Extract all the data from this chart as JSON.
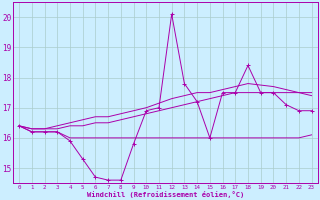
{
  "xlabel": "Windchill (Refroidissement éolien,°C)",
  "background_color": "#cceeff",
  "grid_color": "#aacccc",
  "line_color": "#aa00aa",
  "xlim": [
    -0.5,
    23.5
  ],
  "ylim": [
    14.5,
    20.5
  ],
  "yticks": [
    15,
    16,
    17,
    18,
    19,
    20
  ],
  "xticks": [
    0,
    1,
    2,
    3,
    4,
    5,
    6,
    7,
    8,
    9,
    10,
    11,
    12,
    13,
    14,
    15,
    16,
    17,
    18,
    19,
    20,
    21,
    22,
    23
  ],
  "series1_x": [
    0,
    1,
    2,
    3,
    4,
    5,
    6,
    7,
    8,
    9,
    10,
    11,
    12,
    13,
    14,
    15,
    16,
    17,
    18,
    19,
    20,
    21,
    22,
    23
  ],
  "series1_y": [
    16.4,
    16.2,
    16.2,
    16.2,
    15.9,
    15.3,
    14.7,
    14.6,
    14.6,
    15.8,
    16.9,
    17.0,
    20.1,
    17.8,
    17.2,
    16.0,
    17.5,
    17.5,
    18.4,
    17.5,
    17.5,
    17.1,
    16.9,
    16.9
  ],
  "series2_x": [
    0,
    1,
    2,
    3,
    4,
    5,
    6,
    7,
    8,
    9,
    10,
    11,
    12,
    13,
    14,
    15,
    16,
    17,
    18,
    19,
    20,
    21,
    22,
    23
  ],
  "series2_y": [
    16.4,
    16.2,
    16.2,
    16.2,
    16.0,
    16.0,
    16.0,
    16.0,
    16.0,
    16.0,
    16.0,
    16.0,
    16.0,
    16.0,
    16.0,
    16.0,
    16.0,
    16.0,
    16.0,
    16.0,
    16.0,
    16.0,
    16.0,
    16.1
  ],
  "series3_x": [
    0,
    1,
    2,
    3,
    4,
    5,
    6,
    7,
    8,
    9,
    10,
    11,
    12,
    13,
    14,
    15,
    16,
    17,
    18,
    19,
    20,
    21,
    22,
    23
  ],
  "series3_y": [
    16.4,
    16.3,
    16.3,
    16.3,
    16.4,
    16.4,
    16.5,
    16.5,
    16.6,
    16.7,
    16.8,
    16.9,
    17.0,
    17.1,
    17.2,
    17.3,
    17.4,
    17.5,
    17.5,
    17.5,
    17.5,
    17.5,
    17.5,
    17.5
  ],
  "series4_x": [
    0,
    1,
    2,
    3,
    4,
    5,
    6,
    7,
    8,
    9,
    10,
    11,
    12,
    13,
    14,
    15,
    16,
    17,
    18,
    19,
    20,
    21,
    22,
    23
  ],
  "series4_y": [
    16.4,
    16.3,
    16.3,
    16.4,
    16.5,
    16.6,
    16.7,
    16.7,
    16.8,
    16.9,
    17.0,
    17.15,
    17.3,
    17.4,
    17.5,
    17.5,
    17.6,
    17.7,
    17.8,
    17.75,
    17.7,
    17.6,
    17.5,
    17.4
  ]
}
